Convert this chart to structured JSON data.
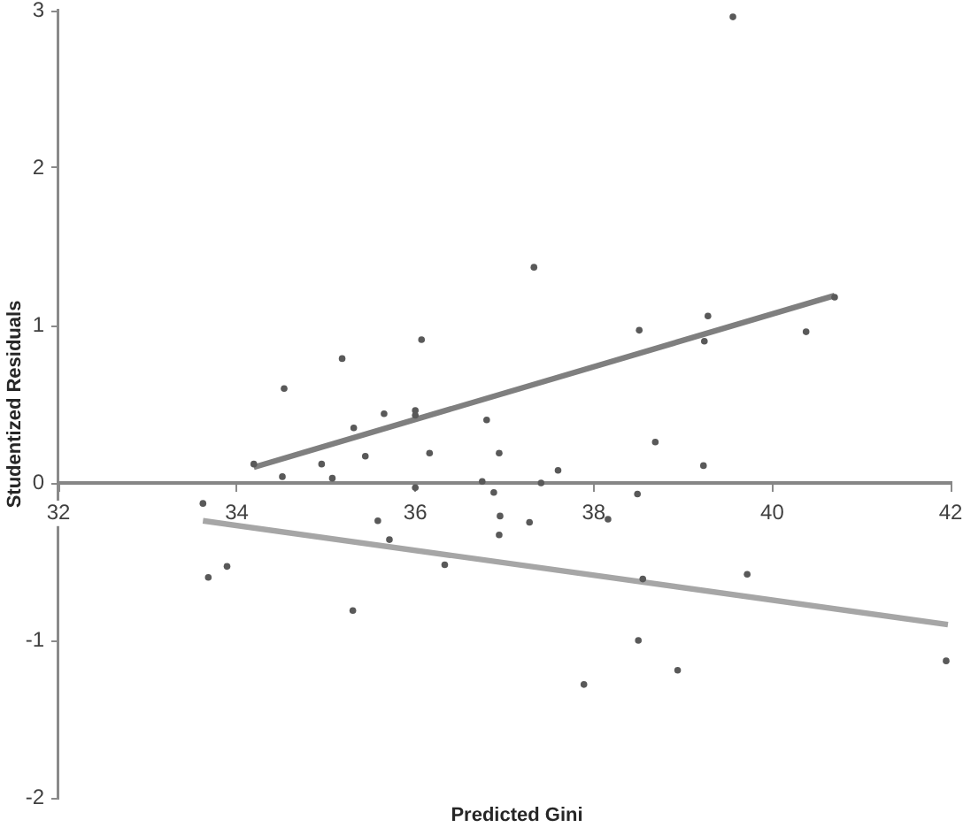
{
  "chart_data": {
    "type": "scatter",
    "xlabel": "Predicted Gini",
    "ylabel": "Studentized Residuals",
    "xlim": [
      32,
      42
    ],
    "xticks": [
      32,
      34,
      36,
      38,
      40,
      42
    ],
    "ylim": [
      -2,
      3
    ],
    "yticks": [
      -2,
      -1,
      0,
      1,
      2,
      3
    ],
    "grid": false,
    "legend": false,
    "marker": "circle",
    "series": [
      {
        "type": "scatter",
        "color": "#595959",
        "x": [
          34.19,
          34.53,
          35.18,
          36.07,
          35.65,
          36.0,
          36.0,
          35.31,
          35.44,
          36.16,
          34.95,
          34.51,
          35.07,
          36.0,
          36.75,
          33.62,
          35.58,
          35.71,
          36.33,
          33.68,
          33.89,
          35.3,
          38.51,
          39.28,
          39.24,
          40.38,
          40.7,
          36.8,
          36.94,
          38.69,
          37.6,
          39.23,
          37.41,
          36.88,
          38.49,
          36.95,
          37.28,
          38.16,
          36.94,
          39.56,
          37.33,
          38.55,
          39.72,
          38.5,
          38.94,
          37.89,
          41.95
        ],
        "values": [
          0.12,
          0.6,
          0.79,
          0.91,
          0.44,
          0.46,
          0.43,
          0.35,
          0.17,
          0.19,
          0.12,
          0.04,
          0.03,
          -0.03,
          0.01,
          -0.13,
          -0.24,
          -0.36,
          -0.52,
          -0.6,
          -0.53,
          -0.81,
          0.97,
          1.06,
          0.9,
          0.96,
          1.18,
          0.4,
          0.19,
          0.26,
          0.08,
          0.11,
          0.0,
          -0.06,
          -0.07,
          -0.21,
          -0.25,
          -0.23,
          -0.33,
          2.96,
          1.37,
          -0.61,
          -0.58,
          -1.0,
          -1.19,
          -1.28,
          -1.13
        ]
      },
      {
        "type": "line",
        "color": "#7f7f7f",
        "marker": "none",
        "line_style": "solid",
        "x": [
          34.19,
          40.7
        ],
        "values": [
          0.1,
          1.19
        ]
      },
      {
        "type": "line",
        "color": "#a6a6a6",
        "marker": "none",
        "line_style": "solid",
        "x": [
          33.62,
          41.97
        ],
        "values": [
          -0.24,
          -0.9
        ]
      }
    ]
  }
}
